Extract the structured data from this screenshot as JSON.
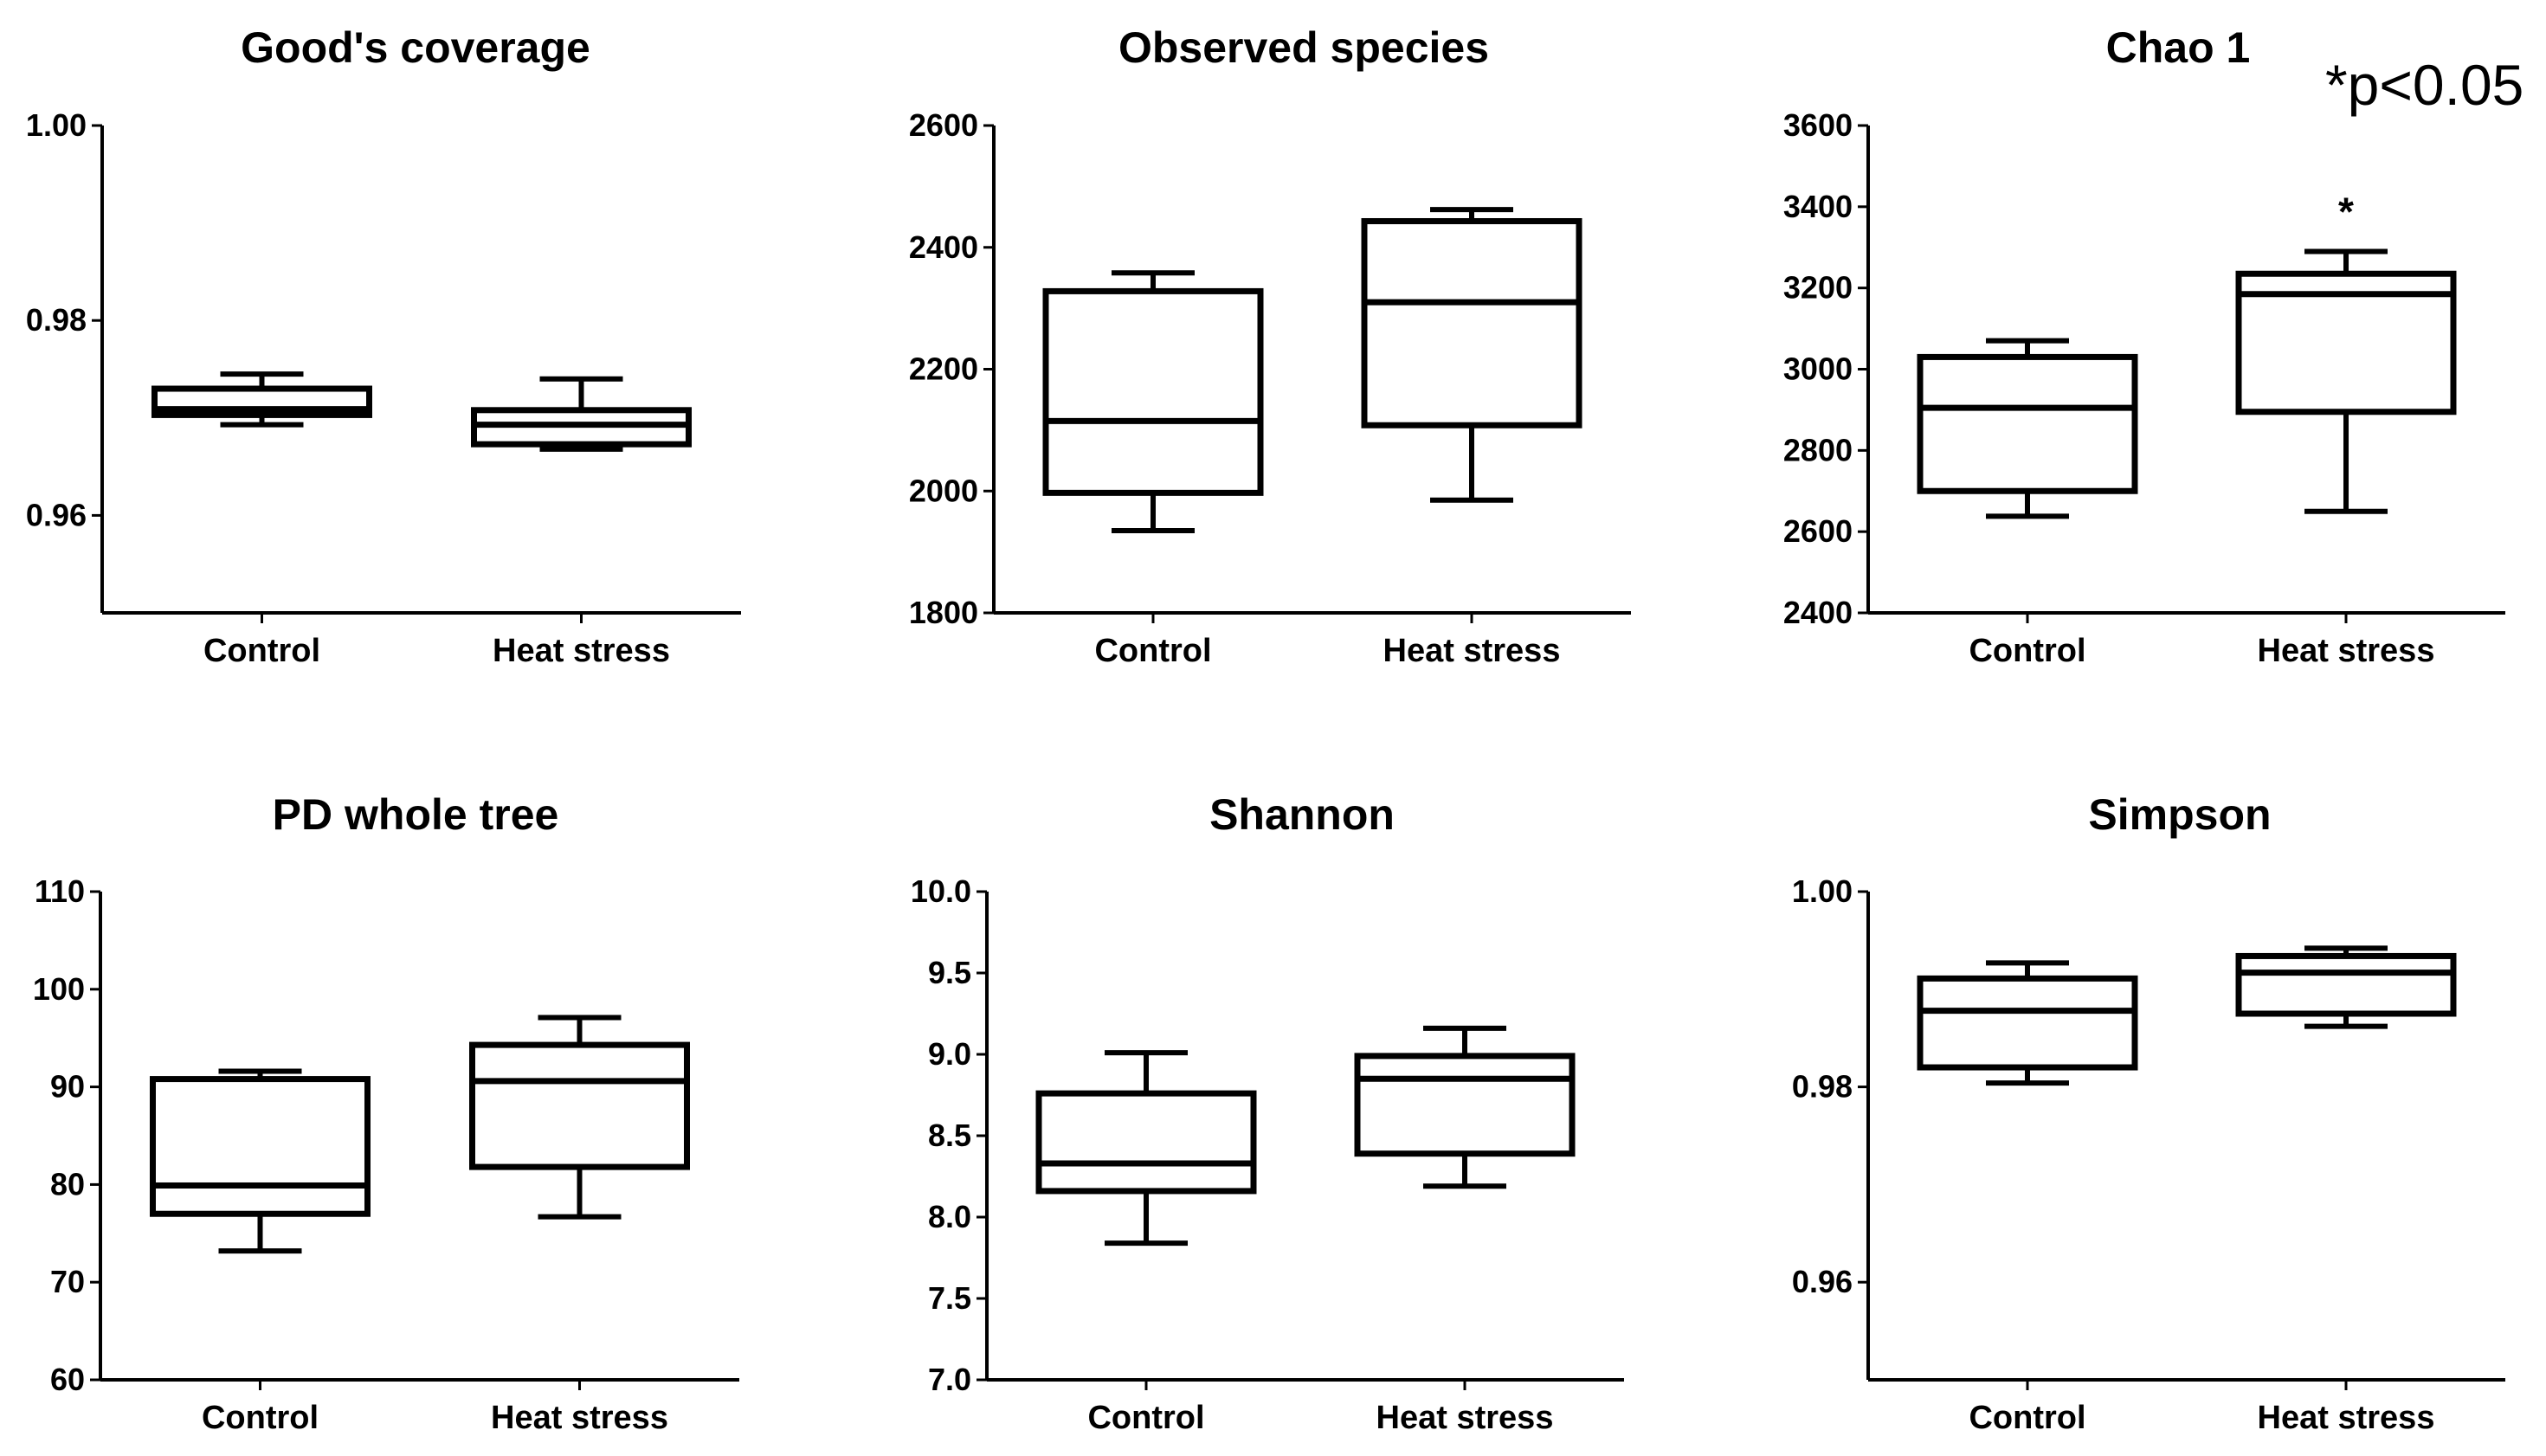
{
  "significance_note": "*p<0.05",
  "chart_data": [
    {
      "type": "boxplot",
      "title": "Good's coverage",
      "categories": [
        "Control",
        "Heat stress"
      ],
      "ylim": [
        0.95,
        1.0
      ],
      "yticks": [
        0.96,
        0.98,
        1.0
      ],
      "ytick_labels": [
        "0.96",
        "0.98",
        "1.00"
      ],
      "boxes": [
        {
          "name": "Control",
          "min": 0.9693,
          "q1": 0.9703,
          "median": 0.9709,
          "q3": 0.973,
          "max": 0.9745,
          "marker": ""
        },
        {
          "name": "Heat stress",
          "min": 0.9668,
          "q1": 0.9673,
          "median": 0.9693,
          "q3": 0.9708,
          "max": 0.974,
          "marker": ""
        }
      ]
    },
    {
      "type": "boxplot",
      "title": "Observed species",
      "categories": [
        "Control",
        "Heat stress"
      ],
      "ylim": [
        1800,
        2600
      ],
      "yticks": [
        1800,
        2000,
        2200,
        2400,
        2600
      ],
      "ytick_labels": [
        "1800",
        "2000",
        "2200",
        "2400",
        "2600"
      ],
      "boxes": [
        {
          "name": "Control",
          "min": 1935,
          "q1": 1997,
          "median": 2115,
          "q3": 2328,
          "max": 2358,
          "marker": ""
        },
        {
          "name": "Heat stress",
          "min": 1985,
          "q1": 2108,
          "median": 2310,
          "q3": 2443,
          "max": 2462,
          "marker": ""
        }
      ]
    },
    {
      "type": "boxplot",
      "title": "Chao 1",
      "categories": [
        "Control",
        "Heat stress"
      ],
      "ylim": [
        2400,
        3600
      ],
      "yticks": [
        2400,
        2600,
        2800,
        3000,
        3200,
        3400,
        3600
      ],
      "ytick_labels": [
        "2400",
        "2600",
        "2800",
        "3000",
        "3200",
        "3400",
        "3600"
      ],
      "boxes": [
        {
          "name": "Control",
          "min": 2638,
          "q1": 2700,
          "median": 2905,
          "q3": 3030,
          "max": 3070,
          "marker": ""
        },
        {
          "name": "Heat stress",
          "min": 2650,
          "q1": 2895,
          "median": 3185,
          "q3": 3235,
          "max": 3290,
          "marker": "*"
        }
      ]
    },
    {
      "type": "boxplot",
      "title": "PD whole tree",
      "categories": [
        "Control",
        "Heat stress"
      ],
      "ylim": [
        60,
        110
      ],
      "yticks": [
        60,
        70,
        80,
        90,
        100,
        110
      ],
      "ytick_labels": [
        "60",
        "70",
        "80",
        "90",
        "100",
        "110"
      ],
      "boxes": [
        {
          "name": "Control",
          "min": 73.2,
          "q1": 77.0,
          "median": 79.9,
          "q3": 90.8,
          "max": 91.6,
          "marker": ""
        },
        {
          "name": "Heat stress",
          "min": 76.7,
          "q1": 81.8,
          "median": 90.6,
          "q3": 94.3,
          "max": 97.1,
          "marker": ""
        }
      ]
    },
    {
      "type": "boxplot",
      "title": "Shannon",
      "categories": [
        "Control",
        "Heat stress"
      ],
      "ylim": [
        7.0,
        10.0
      ],
      "yticks": [
        7.0,
        7.5,
        8.0,
        8.5,
        9.0,
        9.5,
        10.0
      ],
      "ytick_labels": [
        "7.0",
        "7.5",
        "8.0",
        "8.5",
        "9.0",
        "9.5",
        "10.0"
      ],
      "boxes": [
        {
          "name": "Control",
          "min": 7.84,
          "q1": 8.16,
          "median": 8.33,
          "q3": 8.76,
          "max": 9.01,
          "marker": ""
        },
        {
          "name": "Heat stress",
          "min": 8.19,
          "q1": 8.39,
          "median": 8.85,
          "q3": 8.99,
          "max": 9.16,
          "marker": ""
        }
      ]
    },
    {
      "type": "boxplot",
      "title": "Simpson",
      "categories": [
        "Control",
        "Heat stress"
      ],
      "ylim": [
        0.95,
        1.0
      ],
      "yticks": [
        0.96,
        0.98,
        1.0
      ],
      "ytick_labels": [
        "0.96",
        "0.98",
        "1.00"
      ],
      "boxes": [
        {
          "name": "Control",
          "min": 0.9804,
          "q1": 0.982,
          "median": 0.9878,
          "q3": 0.9911,
          "max": 0.9927,
          "marker": ""
        },
        {
          "name": "Heat stress",
          "min": 0.9862,
          "q1": 0.9875,
          "median": 0.9917,
          "q3": 0.9934,
          "max": 0.9942,
          "marker": ""
        }
      ]
    }
  ]
}
